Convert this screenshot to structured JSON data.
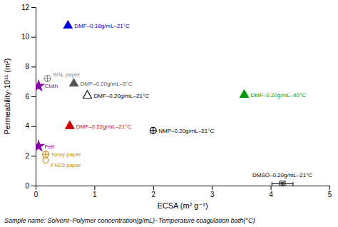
{
  "chart_data": {
    "type": "scatter",
    "xlabel": "ECSA (m² g⁻¹)",
    "ylabel": "Permeability·10¹¹ (m²)",
    "footnote": "Sample name: Solvent–Polymer concentration(g/mL)–Temperature coagulation bath(°C)",
    "xlim": [
      0,
      5
    ],
    "ylim": [
      0,
      12
    ],
    "xticks": [
      0,
      1,
      2,
      3,
      4,
      5
    ],
    "yticks": [
      0,
      2,
      4,
      6,
      8,
      10,
      12
    ],
    "grid": false,
    "series": [
      {
        "name": "DMF–0.18g/mL–21°C",
        "x": [
          0.55
        ],
        "values": [
          10.75
        ],
        "color": "#0000dd",
        "marker": "triangle"
      },
      {
        "name": "DMF–0.20g/mL–5°C",
        "x": [
          0.65
        ],
        "values": [
          6.85
        ],
        "color": "#555555",
        "marker": "triangle"
      },
      {
        "name": "DMF–0.20g/mL–21°C",
        "x": [
          0.88
        ],
        "values": [
          6.05
        ],
        "color": "#000000",
        "marker": "triangle-open"
      },
      {
        "name": "DMF–0.20g/mL–40°C",
        "x": [
          3.55
        ],
        "values": [
          6.1
        ],
        "color": "#009900",
        "marker": "triangle"
      },
      {
        "name": "DMF–0.22g/mL–21°C",
        "x": [
          0.58
        ],
        "values": [
          4.0
        ],
        "color": "#cc0000",
        "marker": "triangle"
      },
      {
        "name": "NMP–0.20g/mL–21°C",
        "x": [
          2.0
        ],
        "values": [
          3.7
        ],
        "color": "#000000",
        "marker": "circle-plus"
      },
      {
        "name": "DMSO–0.20g/mL–21°C",
        "x": [
          4.2
        ],
        "values": [
          0.12
        ],
        "color": "#000000",
        "marker": "square-open",
        "error": [
          0.08
        ],
        "x_error": [
          0.18
        ]
      },
      {
        "name": "SGL paper",
        "x": [
          0.2
        ],
        "values": [
          7.2
        ],
        "color": "#888888",
        "marker": "circle-plus"
      },
      {
        "name": "Cloth",
        "x": [
          0.05
        ],
        "values": [
          6.7
        ],
        "color": "#8800aa",
        "marker": "star"
      },
      {
        "name": "Felt",
        "x": [
          0.05
        ],
        "values": [
          2.65
        ],
        "color": "#8800aa",
        "marker": "star"
      },
      {
        "name": "Toray paper",
        "x": [
          0.17
        ],
        "values": [
          2.1
        ],
        "color": "#cc8800",
        "marker": "circle-plus"
      },
      {
        "name": "FH23 paper",
        "x": [
          0.17
        ],
        "values": [
          1.7
        ],
        "color": "#cc8800",
        "marker": "circle-open"
      }
    ]
  }
}
